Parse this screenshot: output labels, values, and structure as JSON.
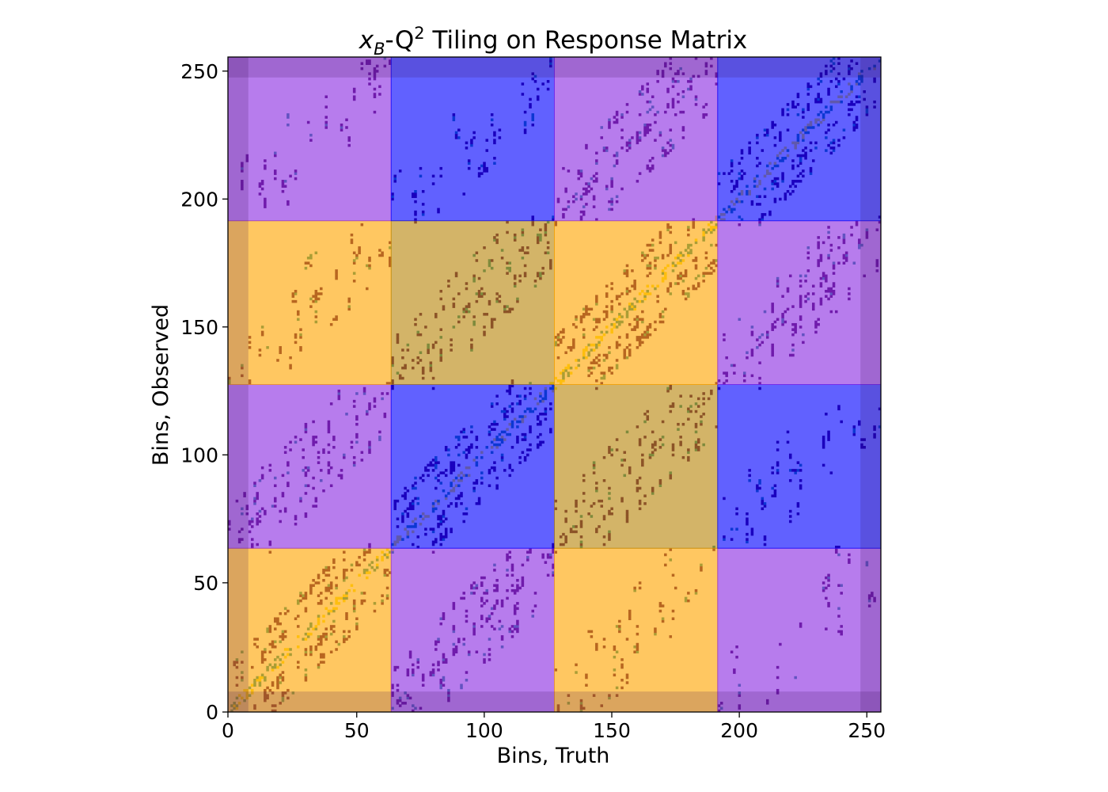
{
  "chart_data": {
    "type": "heatmap",
    "title": {
      "var_x": "x",
      "var_x_sub": "B",
      "dash": "-Q",
      "power": "2",
      "rest": " Tiling on Response Matrix"
    },
    "xlabel": "Bins, Truth",
    "ylabel": "Bins, Observed",
    "xlim": [
      0,
      256
    ],
    "ylim": [
      0,
      256
    ],
    "xticks": [
      0,
      50,
      100,
      150,
      200,
      250
    ],
    "yticks": [
      0,
      50,
      100,
      150,
      200,
      250
    ],
    "block_size": 64,
    "tile_edges": [
      0,
      8,
      64,
      128,
      192,
      248,
      256
    ],
    "tiles": [
      {
        "x": [
          0,
          64
        ],
        "y": [
          0,
          64
        ],
        "color": "#ffa500"
      },
      {
        "x": [
          64,
          128
        ],
        "y": [
          0,
          64
        ],
        "color": "#8a2be2"
      },
      {
        "x": [
          128,
          192
        ],
        "y": [
          0,
          64
        ],
        "color": "#ffa500"
      },
      {
        "x": [
          192,
          256
        ],
        "y": [
          0,
          64
        ],
        "color": "#8a2be2"
      },
      {
        "x": [
          0,
          64
        ],
        "y": [
          64,
          128
        ],
        "color": "#8a2be2"
      },
      {
        "x": [
          64,
          128
        ],
        "y": [
          64,
          128
        ],
        "color": "#0000ff"
      },
      {
        "x": [
          128,
          192
        ],
        "y": [
          64,
          128
        ],
        "color": "#b8860b"
      },
      {
        "x": [
          192,
          256
        ],
        "y": [
          64,
          128
        ],
        "color": "#0000ff"
      },
      {
        "x": [
          0,
          64
        ],
        "y": [
          128,
          192
        ],
        "color": "#ffa500"
      },
      {
        "x": [
          64,
          128
        ],
        "y": [
          128,
          192
        ],
        "color": "#b8860b"
      },
      {
        "x": [
          128,
          192
        ],
        "y": [
          128,
          192
        ],
        "color": "#ffa500"
      },
      {
        "x": [
          192,
          256
        ],
        "y": [
          128,
          192
        ],
        "color": "#8a2be2"
      },
      {
        "x": [
          0,
          64
        ],
        "y": [
          192,
          256
        ],
        "color": "#8a2be2"
      },
      {
        "x": [
          64,
          128
        ],
        "y": [
          192,
          256
        ],
        "color": "#0000ff"
      },
      {
        "x": [
          128,
          192
        ],
        "y": [
          192,
          256
        ],
        "color": "#8a2be2"
      },
      {
        "x": [
          192,
          256
        ],
        "y": [
          192,
          256
        ],
        "color": "#0000ff"
      }
    ],
    "edge_bands": {
      "x": [
        [
          0,
          8
        ],
        [
          248,
          256
        ]
      ],
      "y": [
        [
          0,
          8
        ],
        [
          248,
          256
        ]
      ]
    },
    "matrix_pattern": {
      "diagonal": "y = x",
      "off_diagonal_offsets": [
        -16,
        -8,
        8,
        16
      ],
      "fine_offsets": [
        -2,
        -1,
        0,
        1,
        2
      ],
      "low_value_color": "#440154",
      "mid_value_color": "#21918c",
      "high_value_color": "#fde725"
    },
    "grid": false,
    "legend": "none"
  }
}
